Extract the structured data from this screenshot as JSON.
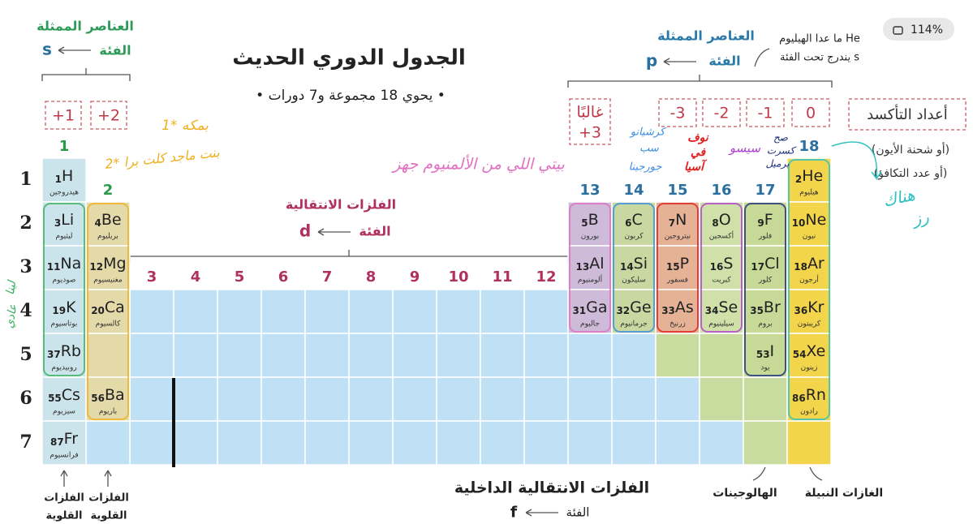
{
  "viewer": {
    "zoom": "114%"
  },
  "header": {
    "title": "الجدول الدوري الحديث",
    "subtitle": "• يحوي 18 مجموعة و7 دورات •"
  },
  "s_block": {
    "label": "العناصر الممثلة",
    "block_word": "الفئة",
    "letter": "s"
  },
  "p_block": {
    "label": "العناصر الممثلة",
    "block_word": "الفئة",
    "letter": "p",
    "note": [
      "ما عدا الهيليوم He",
      "يندرج تحت الفئة s"
    ]
  },
  "d_block": {
    "label": "الفلزات الانتقالية",
    "block_word": "الفئة",
    "letter": "d"
  },
  "f_block": {
    "label": "الفلزات الانتقالية الداخلية",
    "block_word": "الفئة",
    "letter": "f"
  },
  "oxidation": {
    "title": "أعداد التأكسد",
    "lines": [
      "(أو شحنة الأيون)",
      "(أو عدد التكافؤ)"
    ],
    "values": [
      "+1",
      "+2",
      "غالبًا",
      "+3",
      "-3",
      "-2",
      "-1",
      "0"
    ]
  },
  "groups": [
    1,
    2,
    3,
    4,
    5,
    6,
    7,
    8,
    9,
    10,
    11,
    12,
    13,
    14,
    15,
    16,
    17,
    18
  ],
  "periods": [
    1,
    2,
    3,
    4,
    5,
    6,
    7
  ],
  "elements": [
    {
      "number": 1,
      "symbol": "H",
      "name": "هيدروجين"
    },
    {
      "number": 2,
      "symbol": "He",
      "name": "هيليوم"
    },
    {
      "number": 3,
      "symbol": "Li",
      "name": "ليثيوم"
    },
    {
      "number": 4,
      "symbol": "Be",
      "name": "بريليوم"
    },
    {
      "number": 5,
      "symbol": "B",
      "name": "بورون"
    },
    {
      "number": 6,
      "symbol": "C",
      "name": "كربون"
    },
    {
      "number": 7,
      "symbol": "N",
      "name": "نيتروجين"
    },
    {
      "number": 8,
      "symbol": "O",
      "name": "أكسجين"
    },
    {
      "number": 9,
      "symbol": "F",
      "name": "فلور"
    },
    {
      "number": 10,
      "symbol": "Ne",
      "name": "نيون"
    },
    {
      "number": 11,
      "symbol": "Na",
      "name": "صوديوم"
    },
    {
      "number": 12,
      "symbol": "Mg",
      "name": "مغنيسيوم"
    },
    {
      "number": 13,
      "symbol": "Al",
      "name": "ألومنيوم"
    },
    {
      "number": 14,
      "symbol": "Si",
      "name": "سليكون"
    },
    {
      "number": 15,
      "symbol": "P",
      "name": "فسفور"
    },
    {
      "number": 16,
      "symbol": "S",
      "name": "كبريت"
    },
    {
      "number": 17,
      "symbol": "Cl",
      "name": "كلور"
    },
    {
      "number": 18,
      "symbol": "Ar",
      "name": "أرجون"
    },
    {
      "number": 19,
      "symbol": "K",
      "name": "بوتاسيوم"
    },
    {
      "number": 20,
      "symbol": "Ca",
      "name": "كالسيوم"
    },
    {
      "number": 31,
      "symbol": "Ga",
      "name": "جاليوم"
    },
    {
      "number": 32,
      "symbol": "Ge",
      "name": "جرمانيوم"
    },
    {
      "number": 33,
      "symbol": "As",
      "name": "زرنيخ"
    },
    {
      "number": 34,
      "symbol": "Se",
      "name": "سيلينيوم"
    },
    {
      "number": 35,
      "symbol": "Br",
      "name": "بروم"
    },
    {
      "number": 36,
      "symbol": "Kr",
      "name": "كريبتون"
    },
    {
      "number": 37,
      "symbol": "Rb",
      "name": "روبيديوم"
    },
    {
      "number": 53,
      "symbol": "I",
      "name": "يود"
    },
    {
      "number": 54,
      "symbol": "Xe",
      "name": "زينون"
    },
    {
      "number": 55,
      "symbol": "Cs",
      "name": "سيزيوم"
    },
    {
      "number": 56,
      "symbol": "Ba",
      "name": "باريوم"
    },
    {
      "number": 86,
      "symbol": "Rn",
      "name": "رادون"
    },
    {
      "number": 87,
      "symbol": "Fr",
      "name": "فرانسيوم"
    }
  ],
  "family_labels": {
    "alkali": [
      "الفلزات",
      "القلوية"
    ],
    "alkaline_earth": [
      "الفلزات",
      "القلوية"
    ],
    "halogens": "الهالوجينات",
    "noble_gases": "الغازات النبيلة"
  },
  "annotations": {
    "note1": "1* بمكه",
    "note2": "2* بنت ماجد كلت برا",
    "group13": "بيتي اللي من الألمنيوم جهز",
    "group14": [
      "كرشيانو",
      "سب",
      "جورجينا"
    ],
    "group15": [
      "نوف",
      "في",
      "آسيا"
    ],
    "group16": "سيسو",
    "group17": [
      "صح",
      "كسرت",
      "برميل"
    ],
    "group18": [
      "هناك",
      "رز"
    ],
    "group1": [
      "لينا",
      "عادي"
    ]
  }
}
